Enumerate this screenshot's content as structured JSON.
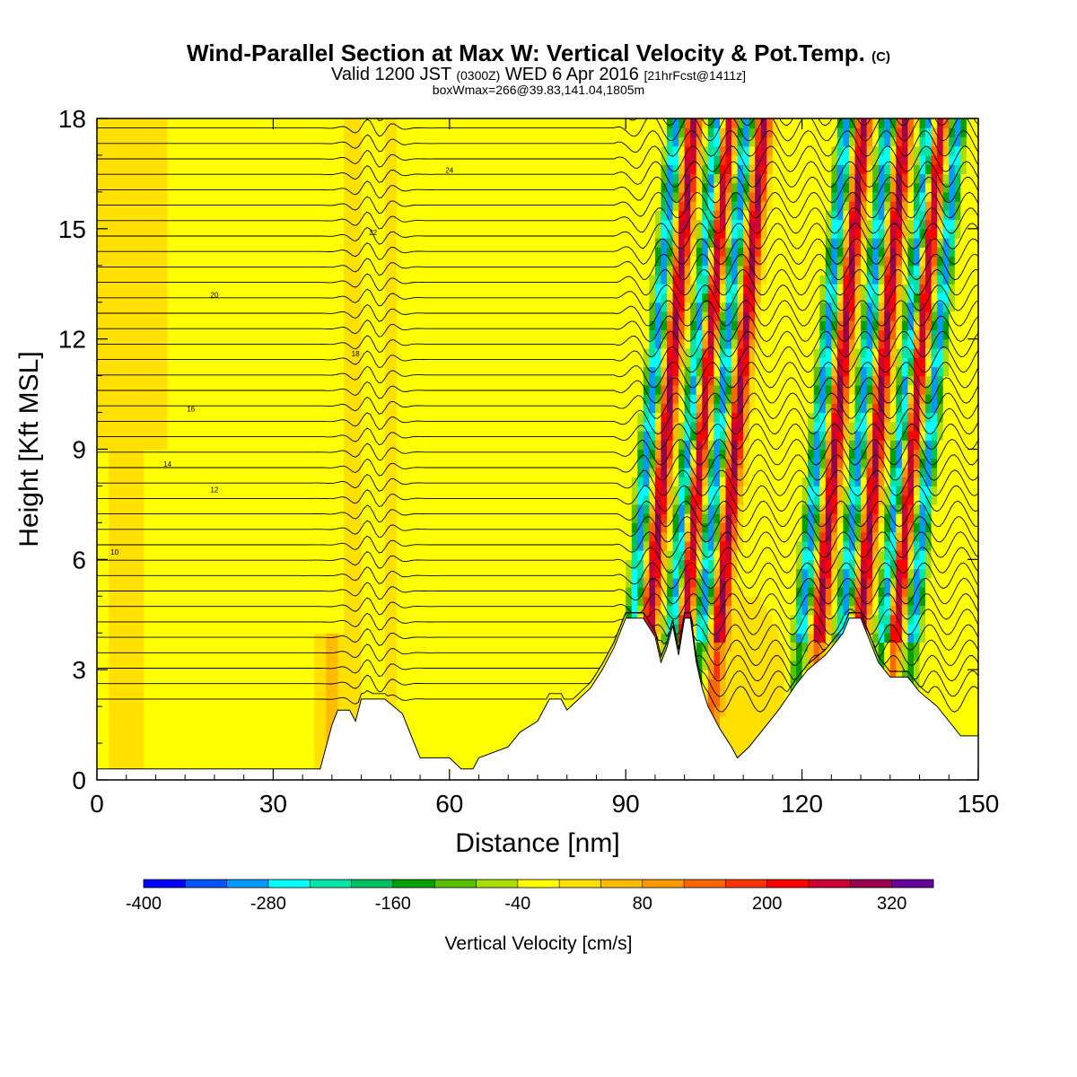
{
  "title": {
    "main": "Wind-Parallel Section at Max W: Vertical Velocity & Pot.Temp.",
    "copyright": "(C)",
    "valid_prefix": "Valid 1200 JST",
    "valid_z": "(0300Z)",
    "valid_date": "WED 6 Apr 2016",
    "forecast": "[21hrFcst@1411z]",
    "box": "boxWmax=266@39.83,141.04,1805m"
  },
  "chart_data": {
    "type": "heatmap",
    "xlabel": "Distance [nm]",
    "ylabel": "Height [Kft MSL]",
    "xlim": [
      0,
      150
    ],
    "ylim": [
      0,
      18
    ],
    "x_ticks": [
      0,
      30,
      60,
      90,
      120,
      150
    ],
    "y_ticks": [
      0,
      3,
      6,
      9,
      12,
      15,
      18
    ],
    "colorbar": {
      "label": "Vertical Velocity [cm/s]",
      "min": -400,
      "max": 360,
      "step": 40,
      "tick_labels": [
        -400,
        -280,
        -160,
        -40,
        80,
        200,
        320
      ],
      "colors": [
        "#0000ff",
        "#0055ff",
        "#0099ff",
        "#00ffff",
        "#00e6a8",
        "#00c060",
        "#00a000",
        "#55c000",
        "#aadd00",
        "#ffff00",
        "#ffe000",
        "#ffbb00",
        "#ff9900",
        "#ff6600",
        "#ff3300",
        "#ff0000",
        "#cc0033",
        "#99004d",
        "#660099"
      ]
    },
    "terrain_kft": [
      [
        0,
        0.3
      ],
      [
        38,
        0.3
      ],
      [
        39,
        0.9
      ],
      [
        40,
        1.5
      ],
      [
        41,
        1.9
      ],
      [
        43,
        1.9
      ],
      [
        44,
        1.6
      ],
      [
        45,
        2.2
      ],
      [
        49,
        2.2
      ],
      [
        52,
        1.8
      ],
      [
        54,
        1.0
      ],
      [
        55,
        0.6
      ],
      [
        60,
        0.6
      ],
      [
        62,
        0.3
      ],
      [
        64,
        0.3
      ],
      [
        65,
        0.6
      ],
      [
        70,
        0.9
      ],
      [
        72,
        1.3
      ],
      [
        75,
        1.6
      ],
      [
        77,
        2.2
      ],
      [
        79,
        2.2
      ],
      [
        80,
        1.9
      ],
      [
        82,
        2.2
      ],
      [
        84,
        2.5
      ],
      [
        86,
        3.0
      ],
      [
        88,
        3.6
      ],
      [
        90,
        4.4
      ],
      [
        93,
        4.4
      ],
      [
        95,
        3.9
      ],
      [
        96,
        3.2
      ],
      [
        97,
        3.6
      ],
      [
        98,
        4.2
      ],
      [
        99,
        3.4
      ],
      [
        100,
        4.4
      ],
      [
        101,
        4.4
      ],
      [
        102,
        3.2
      ],
      [
        103,
        2.5
      ],
      [
        104,
        2.0
      ],
      [
        106,
        1.4
      ],
      [
        108,
        0.9
      ],
      [
        109,
        0.6
      ],
      [
        111,
        0.9
      ],
      [
        113,
        1.3
      ],
      [
        116,
        1.9
      ],
      [
        119,
        2.6
      ],
      [
        121,
        3.0
      ],
      [
        124,
        3.4
      ],
      [
        127,
        4.0
      ],
      [
        128,
        4.4
      ],
      [
        130,
        4.4
      ],
      [
        131,
        4.0
      ],
      [
        133,
        3.2
      ],
      [
        135,
        2.8
      ],
      [
        138,
        2.8
      ],
      [
        140,
        2.4
      ],
      [
        143,
        2.0
      ],
      [
        145,
        1.6
      ],
      [
        147,
        1.2
      ],
      [
        150,
        1.2
      ]
    ],
    "theta_contours": [
      {
        "label": "10",
        "z0": 6.2
      },
      {
        "label": "12",
        "z0": 7.9
      },
      {
        "label": "14",
        "z0": 8.6
      },
      {
        "label": "16",
        "z0": 10.1
      },
      {
        "label": "18",
        "z0": 11.6
      },
      {
        "label": "20",
        "z0": 13.2
      },
      {
        "label": "22",
        "z0": 14.9
      },
      {
        "label": "24",
        "z0": 16.6
      }
    ],
    "updraft_bands_x": [
      95,
      101,
      107,
      124,
      131,
      137
    ],
    "downdraft_bands_x": [
      92,
      99,
      104,
      121,
      128,
      135,
      140
    ]
  }
}
